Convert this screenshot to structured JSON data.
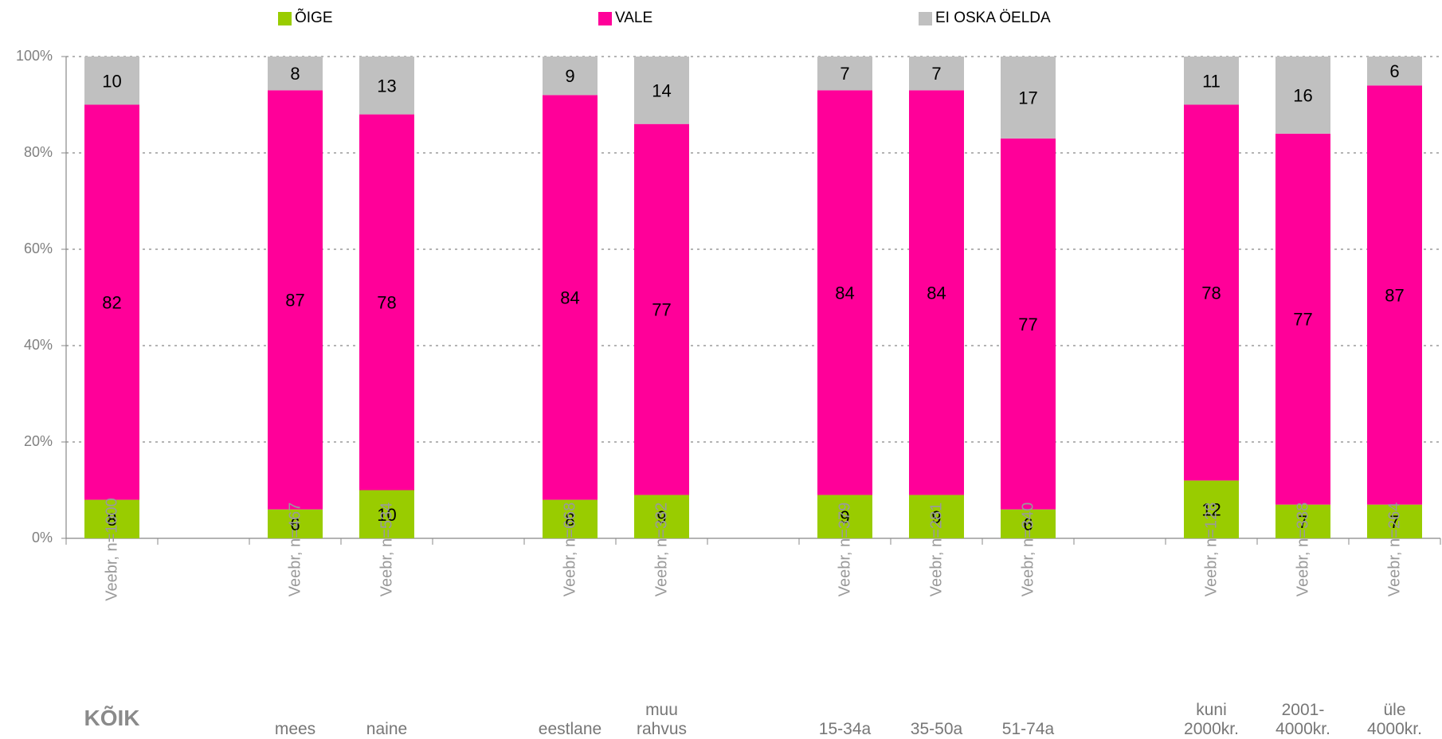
{
  "legend": [
    {
      "label": "ÕIGE",
      "color": "#99cc00"
    },
    {
      "label": "VALE",
      "color": "#ff0099"
    },
    {
      "label": "EI OSKA ÖELDA",
      "color": "#c0c0c0"
    }
  ],
  "chart_data": {
    "type": "bar",
    "stacked": true,
    "ylim": [
      0,
      100
    ],
    "yticks": [
      "0%",
      "20%",
      "40%",
      "60%",
      "80%",
      "100%"
    ],
    "grid": true,
    "legend_position": "top",
    "series": [
      {
        "name": "ÕIGE",
        "color": "#99cc00"
      },
      {
        "name": "VALE",
        "color": "#ff0099"
      },
      {
        "name": "EI OSKA ÖELDA",
        "color": "#c0c0c0"
      }
    ],
    "bars": [
      {
        "slot": 0,
        "label": "Veebr, n=1000",
        "values": [
          8,
          82,
          10
        ]
      },
      {
        "slot": 2,
        "label": "Veebr, n=467",
        "values": [
          6,
          87,
          8
        ]
      },
      {
        "slot": 3,
        "label": "Veebr, n=534",
        "values": [
          10,
          78,
          13
        ]
      },
      {
        "slot": 5,
        "label": "Veebr, n=668",
        "values": [
          8,
          84,
          9
        ]
      },
      {
        "slot": 6,
        "label": "Veebr, n=332",
        "values": [
          9,
          77,
          14
        ]
      },
      {
        "slot": 8,
        "label": "Veebr, n=379",
        "values": [
          9,
          84,
          7
        ]
      },
      {
        "slot": 9,
        "label": "Veebr, n=281",
        "values": [
          9,
          84,
          7
        ]
      },
      {
        "slot": 10,
        "label": "Veebr, n=340",
        "values": [
          6,
          77,
          17
        ]
      },
      {
        "slot": 12,
        "label": "Veebr, n=128",
        "values": [
          12,
          78,
          11
        ]
      },
      {
        "slot": 13,
        "label": "Veebr, n=338",
        "values": [
          7,
          77,
          16
        ]
      },
      {
        "slot": 14,
        "label": "Veebr, n=264",
        "values": [
          7,
          87,
          6
        ]
      }
    ],
    "groups": [
      {
        "slot": 0,
        "label": "KÕIK",
        "bold": true
      },
      {
        "slot": 2,
        "label": "mees"
      },
      {
        "slot": 3,
        "label": "naine"
      },
      {
        "slot": 5,
        "label": "eestlane"
      },
      {
        "slot": 6,
        "label": "muu\nrahvus"
      },
      {
        "slot": 8,
        "label": "15-34a"
      },
      {
        "slot": 9,
        "label": "35-50a"
      },
      {
        "slot": 10,
        "label": "51-74a"
      },
      {
        "slot": 12,
        "label": "kuni\n2000kr."
      },
      {
        "slot": 13,
        "label": "2001-\n4000kr."
      },
      {
        "slot": 14,
        "label": "üle\n4000kr."
      }
    ]
  }
}
